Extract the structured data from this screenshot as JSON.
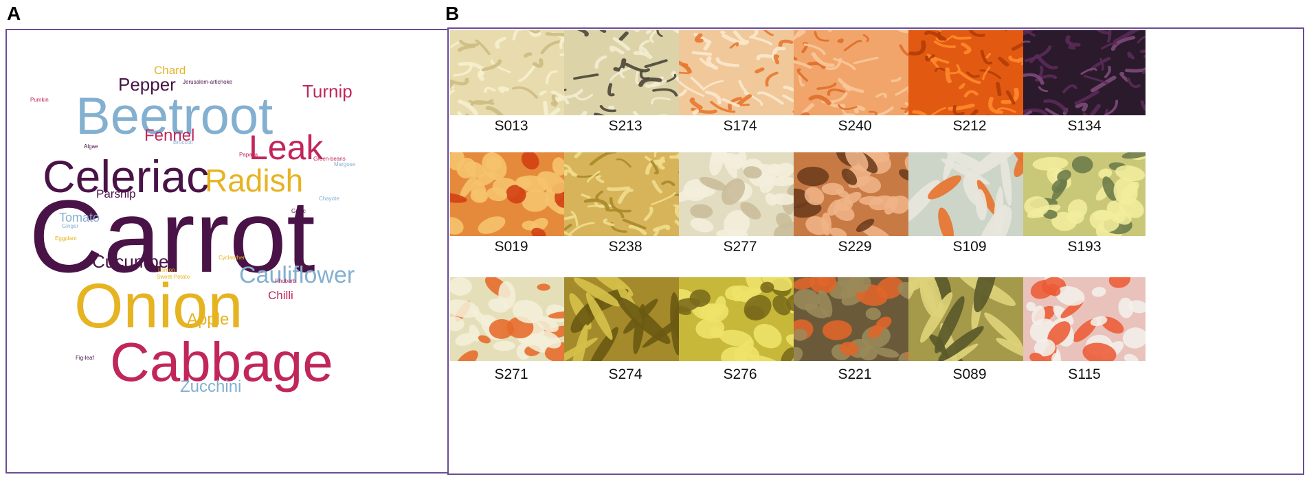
{
  "panels": {
    "a": "A",
    "b": "B"
  },
  "colors": {
    "dark_purple": "#4a1347",
    "light_blue": "#83afd0",
    "crimson": "#c1265a",
    "gold": "#e6b321",
    "frame": "#6a4c93"
  },
  "word_cloud": [
    {
      "text": "Carrot",
      "size": 150,
      "color": "dark_purple"
    },
    {
      "text": "Onion",
      "size": 92,
      "color": "gold"
    },
    {
      "text": "Cabbage",
      "size": 80,
      "color": "crimson"
    },
    {
      "text": "Beetroot",
      "size": 76,
      "color": "light_blue"
    },
    {
      "text": "Celeriac",
      "size": 66,
      "color": "dark_purple"
    },
    {
      "text": "Leak",
      "size": 50,
      "color": "crimson"
    },
    {
      "text": "Radish",
      "size": 46,
      "color": "gold"
    },
    {
      "text": "Cauliflower",
      "size": 34,
      "color": "light_blue"
    },
    {
      "text": "Cucumber",
      "size": 26,
      "color": "dark_purple"
    },
    {
      "text": "Pepper",
      "size": 26,
      "color": "dark_purple"
    },
    {
      "text": "Turnip",
      "size": 26,
      "color": "crimson"
    },
    {
      "text": "Apple",
      "size": 24,
      "color": "gold"
    },
    {
      "text": "Zucchini",
      "size": 24,
      "color": "light_blue"
    },
    {
      "text": "Fennel",
      "size": 24,
      "color": "crimson"
    },
    {
      "text": "Tomato",
      "size": 18,
      "color": "light_blue"
    },
    {
      "text": "Chilli",
      "size": 17,
      "color": "crimson"
    },
    {
      "text": "Parsnip",
      "size": 17,
      "color": "dark_purple"
    },
    {
      "text": "Chard",
      "size": 17,
      "color": "gold"
    },
    {
      "text": "Jerusalem-artichoke",
      "size": 8,
      "color": "dark_purple"
    },
    {
      "text": "Pumkin",
      "size": 8,
      "color": "crimson"
    },
    {
      "text": "Algae",
      "size": 8,
      "color": "dark_purple"
    },
    {
      "text": "Broccoli",
      "size": 8,
      "color": "light_blue"
    },
    {
      "text": "Papaya",
      "size": 8,
      "color": "crimson"
    },
    {
      "text": "Green-beans",
      "size": 8,
      "color": "crimson"
    },
    {
      "text": "Margose",
      "size": 8,
      "color": "light_blue"
    },
    {
      "text": "Chayote",
      "size": 8,
      "color": "light_blue"
    },
    {
      "text": "Garlic",
      "size": 8,
      "color": "dark_purple"
    },
    {
      "text": "Ginger",
      "size": 8,
      "color": "light_blue"
    },
    {
      "text": "Eggplant",
      "size": 8,
      "color": "gold"
    },
    {
      "text": "Cyclanther",
      "size": 8,
      "color": "gold"
    },
    {
      "text": "Lemon",
      "size": 8,
      "color": "gold"
    },
    {
      "text": "Sweet-Potato",
      "size": 8,
      "color": "gold"
    },
    {
      "text": "Rhubarb",
      "size": 8,
      "color": "crimson"
    },
    {
      "text": "Fig-leaf",
      "size": 8,
      "color": "dark_purple"
    }
  ],
  "samples": [
    {
      "id": "S013",
      "bg": "#e8dcae",
      "fg": "#f6efcf",
      "accent": "#cdbd83",
      "style": "strand"
    },
    {
      "id": "S213",
      "bg": "#ddd3a9",
      "fg": "#f3edd2",
      "accent": "#4a4638",
      "style": "strand"
    },
    {
      "id": "S174",
      "bg": "#f0c89a",
      "fg": "#fbe8cc",
      "accent": "#e8782f",
      "style": "strand"
    },
    {
      "id": "S240",
      "bg": "#f1a56a",
      "fg": "#f8c89b",
      "accent": "#e06e2a",
      "style": "strand"
    },
    {
      "id": "S212",
      "bg": "#e25a12",
      "fg": "#ff8a2c",
      "accent": "#b43c05",
      "style": "strand"
    },
    {
      "id": "S134",
      "bg": "#2a1a2c",
      "fg": "#5a2a58",
      "accent": "#7d4a7a",
      "style": "strand"
    },
    {
      "id": "S019",
      "bg": "#e58a3a",
      "fg": "#f6c46d",
      "accent": "#d23f12",
      "style": "chunk"
    },
    {
      "id": "S238",
      "bg": "#d7b45a",
      "fg": "#f1dd8d",
      "accent": "#a88a2a",
      "style": "strand"
    },
    {
      "id": "S277",
      "bg": "#e2dcc0",
      "fg": "#f3efdc",
      "accent": "#c9bc9a",
      "style": "chunk"
    },
    {
      "id": "S229",
      "bg": "#c87a45",
      "fg": "#efb487",
      "accent": "#6b3b1d",
      "style": "chunk"
    },
    {
      "id": "S109",
      "bg": "#cdd4c8",
      "fg": "#e8e6dc",
      "accent": "#e8742f",
      "style": "stick"
    },
    {
      "id": "S193",
      "bg": "#c9c878",
      "fg": "#f3ed9c",
      "accent": "#6b7a4a",
      "style": "chunk"
    },
    {
      "id": "S271",
      "bg": "#e4dfb8",
      "fg": "#f4efd8",
      "accent": "#e66a2a",
      "style": "chunk"
    },
    {
      "id": "S274",
      "bg": "#a48a2a",
      "fg": "#d4c04a",
      "accent": "#6b5a12",
      "style": "stick"
    },
    {
      "id": "S276",
      "bg": "#c7b83a",
      "fg": "#efe36a",
      "accent": "#7a6a1a",
      "style": "chunk"
    },
    {
      "id": "S221",
      "bg": "#6b5a3a",
      "fg": "#9a8a5a",
      "accent": "#e0652a",
      "style": "chunk"
    },
    {
      "id": "S089",
      "bg": "#a59a4a",
      "fg": "#ddd27a",
      "accent": "#5a5a2a",
      "style": "stick"
    },
    {
      "id": "S115",
      "bg": "#e9c2bb",
      "fg": "#f2efe9",
      "accent": "#ec5b36",
      "style": "chunk"
    }
  ]
}
